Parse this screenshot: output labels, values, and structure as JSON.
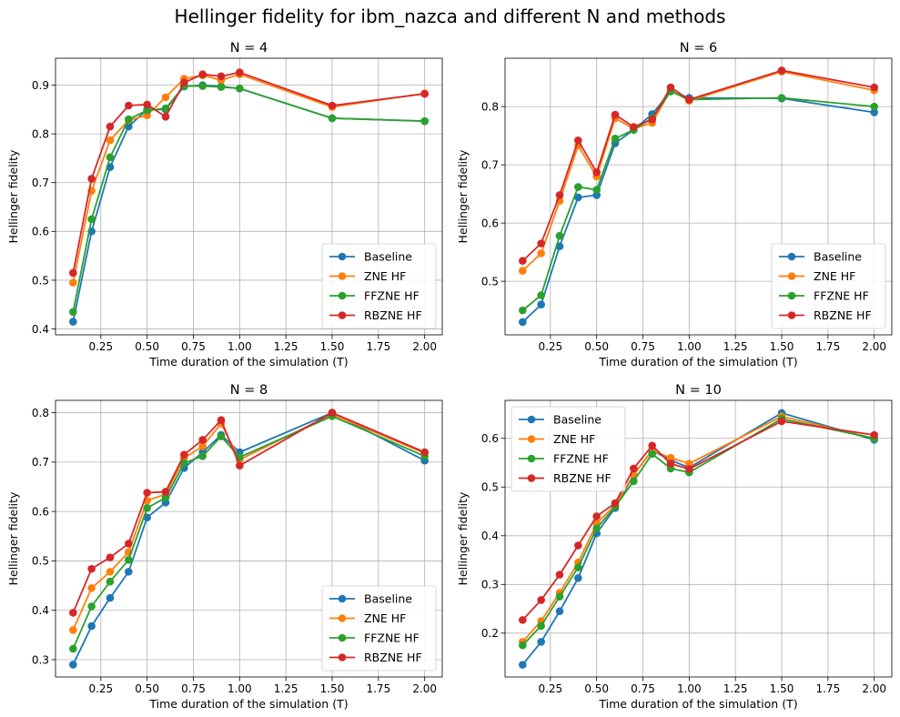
{
  "title": "Hellinger fidelity for ibm_nazca and different N and methods",
  "colors": {
    "Baseline": "#1f77b4",
    "ZNE HF": "#ff7f0e",
    "FFZNE HF": "#2ca02c",
    "RBZNE HF": "#d62728"
  },
  "chart_data": [
    {
      "type": "line",
      "title": "N = 4",
      "xlabel": "Time duration of the simulation (T)",
      "ylabel": "Hellinger fidelity",
      "xlim": [
        0.005,
        2.095
      ],
      "ylim": [
        0.388,
        0.955
      ],
      "xticks": [
        0.25,
        0.5,
        0.75,
        1.0,
        1.25,
        1.5,
        1.75,
        2.0
      ],
      "xtick_labels": [
        "0.25",
        "0.50",
        "0.75",
        "1.00",
        "1.25",
        "1.50",
        "1.75",
        "2.00"
      ],
      "yticks": [
        0.4,
        0.5,
        0.6,
        0.7,
        0.8,
        0.9
      ],
      "ytick_labels": [
        "0.4",
        "0.5",
        "0.6",
        "0.7",
        "0.8",
        "0.9"
      ],
      "grid": true,
      "legend": "lower right",
      "x": [
        0.1,
        0.2,
        0.3,
        0.4,
        0.5,
        0.6,
        0.7,
        0.8,
        0.9,
        1.0,
        1.5,
        2.0
      ],
      "series": [
        {
          "name": "Baseline",
          "values": [
            0.415,
            0.6,
            0.732,
            0.815,
            0.85,
            0.85,
            0.897,
            0.9,
            0.897,
            0.893,
            0.832,
            0.826
          ]
        },
        {
          "name": "ZNE HF",
          "values": [
            0.495,
            0.683,
            0.787,
            0.828,
            0.838,
            0.875,
            0.913,
            0.92,
            0.91,
            0.922,
            0.855,
            0.883
          ]
        },
        {
          "name": "FFZNE HF",
          "values": [
            0.435,
            0.625,
            0.752,
            0.83,
            0.848,
            0.852,
            0.898,
            0.898,
            0.896,
            0.893,
            0.832,
            0.826
          ]
        },
        {
          "name": "RBZNE HF",
          "values": [
            0.515,
            0.708,
            0.815,
            0.858,
            0.86,
            0.835,
            0.905,
            0.922,
            0.918,
            0.926,
            0.858,
            0.882
          ]
        }
      ]
    },
    {
      "type": "line",
      "title": "N = 6",
      "xlabel": "Time duration of the simulation (T)",
      "ylabel": "Hellinger fidelity",
      "xlim": [
        0.005,
        2.095
      ],
      "ylim": [
        0.408,
        0.883
      ],
      "xticks": [
        0.25,
        0.5,
        0.75,
        1.0,
        1.25,
        1.5,
        1.75,
        2.0
      ],
      "xtick_labels": [
        "0.25",
        "0.50",
        "0.75",
        "1.00",
        "1.25",
        "1.50",
        "1.75",
        "2.00"
      ],
      "yticks": [
        0.5,
        0.6,
        0.7,
        0.8
      ],
      "ytick_labels": [
        "0.5",
        "0.6",
        "0.7",
        "0.8"
      ],
      "grid": true,
      "legend": "lower right",
      "x": [
        0.1,
        0.2,
        0.3,
        0.4,
        0.5,
        0.6,
        0.7,
        0.8,
        0.9,
        1.0,
        1.5,
        2.0
      ],
      "series": [
        {
          "name": "Baseline",
          "values": [
            0.43,
            0.46,
            0.56,
            0.644,
            0.648,
            0.737,
            0.76,
            0.787,
            0.826,
            0.815,
            0.814,
            0.79
          ]
        },
        {
          "name": "ZNE HF",
          "values": [
            0.518,
            0.548,
            0.638,
            0.733,
            0.68,
            0.78,
            0.762,
            0.772,
            0.828,
            0.81,
            0.86,
            0.828
          ]
        },
        {
          "name": "FFZNE HF",
          "values": [
            0.45,
            0.476,
            0.578,
            0.662,
            0.657,
            0.745,
            0.76,
            0.78,
            0.826,
            0.812,
            0.815,
            0.8
          ]
        },
        {
          "name": "RBZNE HF",
          "values": [
            0.535,
            0.565,
            0.648,
            0.742,
            0.687,
            0.786,
            0.765,
            0.778,
            0.833,
            0.812,
            0.862,
            0.833
          ]
        }
      ]
    },
    {
      "type": "line",
      "title": "N = 8",
      "xlabel": "Time duration of the simulation (T)",
      "ylabel": "Hellinger fidelity",
      "xlim": [
        0.005,
        2.095
      ],
      "ylim": [
        0.265,
        0.825
      ],
      "xticks": [
        0.25,
        0.5,
        0.75,
        1.0,
        1.25,
        1.5,
        1.75,
        2.0
      ],
      "xtick_labels": [
        "0.25",
        "0.50",
        "0.75",
        "1.00",
        "1.25",
        "1.50",
        "1.75",
        "2.00"
      ],
      "yticks": [
        0.3,
        0.4,
        0.5,
        0.6,
        0.7,
        0.8
      ],
      "ytick_labels": [
        "0.3",
        "0.4",
        "0.5",
        "0.6",
        "0.7",
        "0.8"
      ],
      "grid": true,
      "legend": "lower right",
      "x": [
        0.1,
        0.2,
        0.3,
        0.4,
        0.5,
        0.6,
        0.7,
        0.8,
        0.9,
        1.0,
        1.5,
        2.0
      ],
      "series": [
        {
          "name": "Baseline",
          "values": [
            0.29,
            0.368,
            0.425,
            0.478,
            0.588,
            0.618,
            0.688,
            0.72,
            0.755,
            0.72,
            0.8,
            0.703
          ]
        },
        {
          "name": "ZNE HF",
          "values": [
            0.36,
            0.445,
            0.478,
            0.518,
            0.622,
            0.635,
            0.708,
            0.732,
            0.778,
            0.705,
            0.797,
            0.718
          ]
        },
        {
          "name": "FFZNE HF",
          "values": [
            0.322,
            0.408,
            0.458,
            0.502,
            0.607,
            0.628,
            0.698,
            0.712,
            0.752,
            0.71,
            0.793,
            0.712
          ]
        },
        {
          "name": "RBZNE HF",
          "values": [
            0.395,
            0.484,
            0.507,
            0.535,
            0.638,
            0.64,
            0.715,
            0.745,
            0.785,
            0.693,
            0.8,
            0.72
          ]
        }
      ]
    },
    {
      "type": "line",
      "title": "N = 10",
      "xlabel": "Time duration of the simulation (T)",
      "ylabel": "Hellinger fidelity",
      "xlim": [
        0.005,
        2.095
      ],
      "ylim": [
        0.11,
        0.678
      ],
      "xticks": [
        0.25,
        0.5,
        0.75,
        1.0,
        1.25,
        1.5,
        1.75,
        2.0
      ],
      "xtick_labels": [
        "0.25",
        "0.50",
        "0.75",
        "1.00",
        "1.25",
        "1.50",
        "1.75",
        "2.00"
      ],
      "yticks": [
        0.2,
        0.3,
        0.4,
        0.5,
        0.6
      ],
      "ytick_labels": [
        "0.2",
        "0.3",
        "0.4",
        "0.5",
        "0.6"
      ],
      "grid": true,
      "legend": "upper left",
      "x": [
        0.1,
        0.2,
        0.3,
        0.4,
        0.5,
        0.6,
        0.7,
        0.8,
        0.9,
        1.0,
        1.5,
        2.0
      ],
      "series": [
        {
          "name": "Baseline",
          "values": [
            0.135,
            0.182,
            0.245,
            0.313,
            0.405,
            0.457,
            0.525,
            0.575,
            0.555,
            0.54,
            0.652,
            0.597
          ]
        },
        {
          "name": "ZNE HF",
          "values": [
            0.182,
            0.225,
            0.283,
            0.345,
            0.425,
            0.463,
            0.525,
            0.575,
            0.56,
            0.548,
            0.645,
            0.6
          ]
        },
        {
          "name": "FFZNE HF",
          "values": [
            0.175,
            0.215,
            0.275,
            0.335,
            0.415,
            0.46,
            0.512,
            0.568,
            0.538,
            0.53,
            0.64,
            0.6
          ]
        },
        {
          "name": "RBZNE HF",
          "values": [
            0.227,
            0.268,
            0.32,
            0.38,
            0.44,
            0.467,
            0.538,
            0.585,
            0.548,
            0.537,
            0.635,
            0.607
          ]
        }
      ]
    }
  ]
}
